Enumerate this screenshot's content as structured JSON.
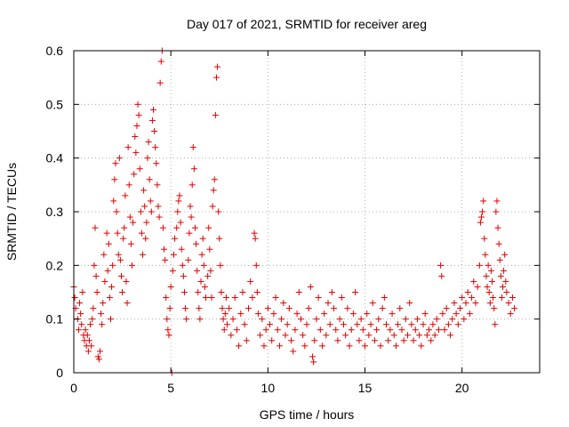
{
  "chart_data": {
    "type": "scatter",
    "title": "Day 017 of 2021, SRMTID for receiver areg",
    "xlabel": "GPS time / hours",
    "ylabel": "SRMTID / TECUs",
    "xlim": [
      0,
      24
    ],
    "ylim": [
      0,
      0.6
    ],
    "xticks": [
      0,
      5,
      10,
      15,
      20
    ],
    "yticks": [
      0,
      0.1,
      0.2,
      0.3,
      0.4,
      0.5,
      0.6
    ],
    "ytick_labels": [
      "0",
      "0.1",
      "0.2",
      "0.3",
      "0.4",
      "0.5",
      "0.6"
    ],
    "grid": true,
    "marker": "+",
    "color": "#e00000",
    "series": [
      {
        "name": "SRMTID",
        "points": [
          [
            0.0,
            0.16
          ],
          [
            0.05,
            0.14
          ],
          [
            0.1,
            0.12
          ],
          [
            0.2,
            0.1
          ],
          [
            0.25,
            0.08
          ],
          [
            0.3,
            0.13
          ],
          [
            0.35,
            0.11
          ],
          [
            0.4,
            0.09
          ],
          [
            0.45,
            0.15
          ],
          [
            0.5,
            0.07
          ],
          [
            0.55,
            0.06
          ],
          [
            0.6,
            0.08
          ],
          [
            0.65,
            0.05
          ],
          [
            0.7,
            0.07
          ],
          [
            0.75,
            0.04
          ],
          [
            0.8,
            0.06
          ],
          [
            0.85,
            0.09
          ],
          [
            0.9,
            0.05
          ],
          [
            0.95,
            0.1
          ],
          [
            1.0,
            0.12
          ],
          [
            1.05,
            0.2
          ],
          [
            1.1,
            0.27
          ],
          [
            1.15,
            0.18
          ],
          [
            1.2,
            0.15
          ],
          [
            1.25,
            0.03
          ],
          [
            1.3,
            0.025
          ],
          [
            1.35,
            0.04
          ],
          [
            1.4,
            0.11
          ],
          [
            1.45,
            0.09
          ],
          [
            1.5,
            0.13
          ],
          [
            1.55,
            0.22
          ],
          [
            1.6,
            0.17
          ],
          [
            1.7,
            0.26
          ],
          [
            1.75,
            0.19
          ],
          [
            1.8,
            0.24
          ],
          [
            1.85,
            0.14
          ],
          [
            1.9,
            0.1
          ],
          [
            1.95,
            0.16
          ],
          [
            2.0,
            0.2
          ],
          [
            2.05,
            0.32
          ],
          [
            2.1,
            0.36
          ],
          [
            2.15,
            0.39
          ],
          [
            2.2,
            0.3
          ],
          [
            2.25,
            0.26
          ],
          [
            2.3,
            0.22
          ],
          [
            2.35,
            0.4
          ],
          [
            2.4,
            0.21
          ],
          [
            2.45,
            0.18
          ],
          [
            2.5,
            0.15
          ],
          [
            2.55,
            0.25
          ],
          [
            2.6,
            0.27
          ],
          [
            2.65,
            0.33
          ],
          [
            2.7,
            0.17
          ],
          [
            2.75,
            0.13
          ],
          [
            2.8,
            0.42
          ],
          [
            2.85,
            0.35
          ],
          [
            2.9,
            0.29
          ],
          [
            2.95,
            0.24
          ],
          [
            3.0,
            0.2
          ],
          [
            3.05,
            0.28
          ],
          [
            3.1,
            0.37
          ],
          [
            3.15,
            0.44
          ],
          [
            3.2,
            0.41
          ],
          [
            3.25,
            0.46
          ],
          [
            3.3,
            0.5
          ],
          [
            3.35,
            0.48
          ],
          [
            3.4,
            0.38
          ],
          [
            3.45,
            0.3
          ],
          [
            3.5,
            0.26
          ],
          [
            3.55,
            0.22
          ],
          [
            3.6,
            0.34
          ],
          [
            3.65,
            0.31
          ],
          [
            3.7,
            0.25
          ],
          [
            3.75,
            0.28
          ],
          [
            3.8,
            0.4
          ],
          [
            3.85,
            0.43
          ],
          [
            3.9,
            0.36
          ],
          [
            3.95,
            0.32
          ],
          [
            4.0,
            0.3
          ],
          [
            4.05,
            0.47
          ],
          [
            4.1,
            0.49
          ],
          [
            4.15,
            0.45
          ],
          [
            4.2,
            0.42
          ],
          [
            4.25,
            0.39
          ],
          [
            4.3,
            0.35
          ],
          [
            4.35,
            0.31
          ],
          [
            4.4,
            0.29
          ],
          [
            4.45,
            0.54
          ],
          [
            4.5,
            0.58
          ],
          [
            4.55,
            0.6
          ],
          [
            4.6,
            0.27
          ],
          [
            4.65,
            0.23
          ],
          [
            4.7,
            0.21
          ],
          [
            4.75,
            0.14
          ],
          [
            4.8,
            0.1
          ],
          [
            4.85,
            0.08
          ],
          [
            4.9,
            0.07
          ],
          [
            4.95,
            0.12
          ],
          [
            5.0,
            0.16
          ],
          [
            5.05,
            0.0
          ],
          [
            5.1,
            0.19
          ],
          [
            5.15,
            0.22
          ],
          [
            5.2,
            0.25
          ],
          [
            5.3,
            0.27
          ],
          [
            5.35,
            0.3
          ],
          [
            5.4,
            0.32
          ],
          [
            5.45,
            0.33
          ],
          [
            5.5,
            0.28
          ],
          [
            5.55,
            0.23
          ],
          [
            5.6,
            0.2
          ],
          [
            5.65,
            0.18
          ],
          [
            5.7,
            0.15
          ],
          [
            5.75,
            0.12
          ],
          [
            5.8,
            0.1
          ],
          [
            5.9,
            0.21
          ],
          [
            5.95,
            0.26
          ],
          [
            6.0,
            0.31
          ],
          [
            6.05,
            0.29
          ],
          [
            6.1,
            0.35
          ],
          [
            6.15,
            0.42
          ],
          [
            6.2,
            0.38
          ],
          [
            6.25,
            0.27
          ],
          [
            6.3,
            0.24
          ],
          [
            6.35,
            0.19
          ],
          [
            6.4,
            0.15
          ],
          [
            6.45,
            0.12
          ],
          [
            6.5,
            0.1
          ],
          [
            6.55,
            0.17
          ],
          [
            6.6,
            0.22
          ],
          [
            6.65,
            0.25
          ],
          [
            6.7,
            0.2
          ],
          [
            6.75,
            0.16
          ],
          [
            6.8,
            0.14
          ],
          [
            6.9,
            0.18
          ],
          [
            6.95,
            0.27
          ],
          [
            7.0,
            0.23
          ],
          [
            7.05,
            0.19
          ],
          [
            7.1,
            0.14
          ],
          [
            7.15,
            0.31
          ],
          [
            7.2,
            0.34
          ],
          [
            7.25,
            0.36
          ],
          [
            7.3,
            0.48
          ],
          [
            7.35,
            0.55
          ],
          [
            7.4,
            0.57
          ],
          [
            7.45,
            0.3
          ],
          [
            7.5,
            0.25
          ],
          [
            7.55,
            0.2
          ],
          [
            7.6,
            0.15
          ],
          [
            7.65,
            0.12
          ],
          [
            7.7,
            0.1
          ],
          [
            7.75,
            0.08
          ],
          [
            7.8,
            0.11
          ],
          [
            7.85,
            0.14
          ],
          [
            7.9,
            0.09
          ],
          [
            8.0,
            0.12
          ],
          [
            8.1,
            0.07
          ],
          [
            8.2,
            0.1
          ],
          [
            8.3,
            0.14
          ],
          [
            8.4,
            0.08
          ],
          [
            8.5,
            0.05
          ],
          [
            8.6,
            0.11
          ],
          [
            8.7,
            0.15
          ],
          [
            8.8,
            0.09
          ],
          [
            8.9,
            0.06
          ],
          [
            9.0,
            0.12
          ],
          [
            9.1,
            0.17
          ],
          [
            9.2,
            0.14
          ],
          [
            9.3,
            0.26
          ],
          [
            9.35,
            0.25
          ],
          [
            9.4,
            0.2
          ],
          [
            9.45,
            0.15
          ],
          [
            9.5,
            0.11
          ],
          [
            9.6,
            0.07
          ],
          [
            9.7,
            0.1
          ],
          [
            9.8,
            0.05
          ],
          [
            9.9,
            0.08
          ],
          [
            10.0,
            0.12
          ],
          [
            10.1,
            0.09
          ],
          [
            10.2,
            0.06
          ],
          [
            10.3,
            0.11
          ],
          [
            10.4,
            0.14
          ],
          [
            10.5,
            0.08
          ],
          [
            10.6,
            0.05
          ],
          [
            10.7,
            0.1
          ],
          [
            10.8,
            0.13
          ],
          [
            10.9,
            0.07
          ],
          [
            11.0,
            0.09
          ],
          [
            11.1,
            0.12
          ],
          [
            11.2,
            0.06
          ],
          [
            11.3,
            0.04
          ],
          [
            11.4,
            0.08
          ],
          [
            11.5,
            0.11
          ],
          [
            11.6,
            0.15
          ],
          [
            11.7,
            0.1
          ],
          [
            11.8,
            0.07
          ],
          [
            11.9,
            0.05
          ],
          [
            12.0,
            0.09
          ],
          [
            12.1,
            0.12
          ],
          [
            12.2,
            0.16
          ],
          [
            12.3,
            0.03
          ],
          [
            12.35,
            0.02
          ],
          [
            12.4,
            0.06
          ],
          [
            12.5,
            0.1
          ],
          [
            12.6,
            0.14
          ],
          [
            12.7,
            0.08
          ],
          [
            12.8,
            0.05
          ],
          [
            12.9,
            0.11
          ],
          [
            13.0,
            0.07
          ],
          [
            13.1,
            0.13
          ],
          [
            13.2,
            0.09
          ],
          [
            13.3,
            0.15
          ],
          [
            13.4,
            0.12
          ],
          [
            13.5,
            0.08
          ],
          [
            13.6,
            0.06
          ],
          [
            13.7,
            0.1
          ],
          [
            13.8,
            0.14
          ],
          [
            13.9,
            0.09
          ],
          [
            14.0,
            0.07
          ],
          [
            14.1,
            0.12
          ],
          [
            14.2,
            0.05
          ],
          [
            14.3,
            0.08
          ],
          [
            14.4,
            0.11
          ],
          [
            14.5,
            0.15
          ],
          [
            14.6,
            0.09
          ],
          [
            14.7,
            0.06
          ],
          [
            14.8,
            0.1
          ],
          [
            14.9,
            0.08
          ],
          [
            15.0,
            0.05
          ],
          [
            15.1,
            0.11
          ],
          [
            15.2,
            0.07
          ],
          [
            15.3,
            0.09
          ],
          [
            15.4,
            0.13
          ],
          [
            15.5,
            0.06
          ],
          [
            15.6,
            0.08
          ],
          [
            15.7,
            0.1
          ],
          [
            15.8,
            0.05
          ],
          [
            15.9,
            0.12
          ],
          [
            16.0,
            0.14
          ],
          [
            16.1,
            0.09
          ],
          [
            16.2,
            0.06
          ],
          [
            16.3,
            0.08
          ],
          [
            16.4,
            0.11
          ],
          [
            16.5,
            0.07
          ],
          [
            16.6,
            0.05
          ],
          [
            16.7,
            0.09
          ],
          [
            16.8,
            0.12
          ],
          [
            16.9,
            0.08
          ],
          [
            17.0,
            0.06
          ],
          [
            17.1,
            0.1
          ],
          [
            17.2,
            0.07
          ],
          [
            17.3,
            0.13
          ],
          [
            17.4,
            0.09
          ],
          [
            17.5,
            0.06
          ],
          [
            17.6,
            0.08
          ],
          [
            17.7,
            0.1
          ],
          [
            17.8,
            0.07
          ],
          [
            17.9,
            0.05
          ],
          [
            18.0,
            0.09
          ],
          [
            18.1,
            0.11
          ],
          [
            18.2,
            0.07
          ],
          [
            18.3,
            0.08
          ],
          [
            18.4,
            0.06
          ],
          [
            18.5,
            0.09
          ],
          [
            18.6,
            0.07
          ],
          [
            18.7,
            0.1
          ],
          [
            18.8,
            0.08
          ],
          [
            18.9,
            0.2
          ],
          [
            18.95,
            0.18
          ],
          [
            19.0,
            0.11
          ],
          [
            19.1,
            0.08
          ],
          [
            19.2,
            0.12
          ],
          [
            19.3,
            0.09
          ],
          [
            19.4,
            0.07
          ],
          [
            19.5,
            0.1
          ],
          [
            19.6,
            0.13
          ],
          [
            19.7,
            0.11
          ],
          [
            19.8,
            0.09
          ],
          [
            19.9,
            0.12
          ],
          [
            20.0,
            0.14
          ],
          [
            20.1,
            0.1
          ],
          [
            20.2,
            0.13
          ],
          [
            20.3,
            0.15
          ],
          [
            20.4,
            0.11
          ],
          [
            20.5,
            0.14
          ],
          [
            20.6,
            0.17
          ],
          [
            20.7,
            0.13
          ],
          [
            20.8,
            0.16
          ],
          [
            20.9,
            0.2
          ],
          [
            20.95,
            0.28
          ],
          [
            21.0,
            0.29
          ],
          [
            21.05,
            0.3
          ],
          [
            21.1,
            0.32
          ],
          [
            21.15,
            0.25
          ],
          [
            21.2,
            0.22
          ],
          [
            21.25,
            0.18
          ],
          [
            21.3,
            0.16
          ],
          [
            21.35,
            0.2
          ],
          [
            21.4,
            0.15
          ],
          [
            21.45,
            0.13
          ],
          [
            21.5,
            0.19
          ],
          [
            21.55,
            0.17
          ],
          [
            21.6,
            0.14
          ],
          [
            21.65,
            0.12
          ],
          [
            21.7,
            0.09
          ],
          [
            21.75,
            0.3
          ],
          [
            21.8,
            0.32
          ],
          [
            21.85,
            0.27
          ],
          [
            21.9,
            0.24
          ],
          [
            21.95,
            0.21
          ],
          [
            22.0,
            0.18
          ],
          [
            22.05,
            0.14
          ],
          [
            22.1,
            0.16
          ],
          [
            22.15,
            0.19
          ],
          [
            22.2,
            0.22
          ],
          [
            22.25,
            0.17
          ],
          [
            22.3,
            0.15
          ],
          [
            22.4,
            0.13
          ],
          [
            22.5,
            0.11
          ],
          [
            22.6,
            0.14
          ],
          [
            22.7,
            0.12
          ]
        ]
      }
    ]
  }
}
